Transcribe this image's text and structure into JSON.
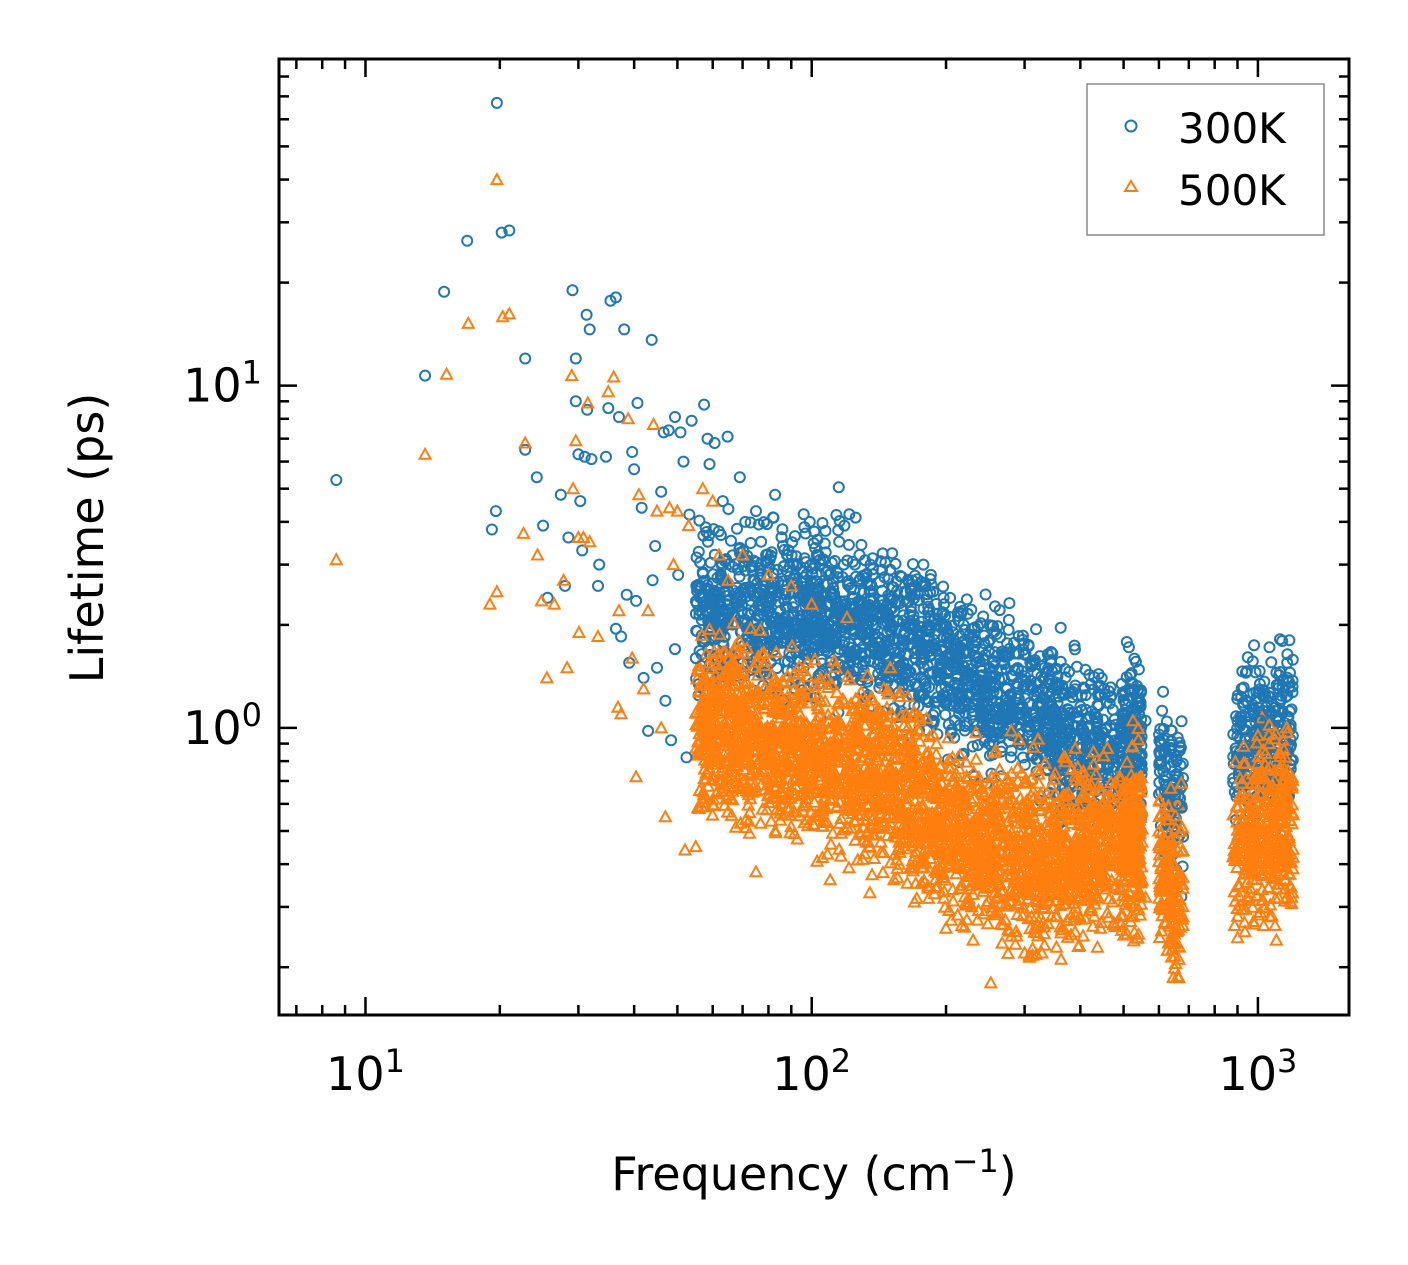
{
  "chart_data": {
    "type": "scatter",
    "title": "",
    "xlabel_main": "Frequency (cm",
    "xlabel_sup": "−1",
    "xlabel_end": ")",
    "ylabel": "Lifetime (ps)",
    "x_scale": "log",
    "y_scale": "log",
    "xlim": [
      6.4,
      1600
    ],
    "ylim": [
      0.145,
      90
    ],
    "x_ticks": [
      {
        "base": "10",
        "exp": "1",
        "value": 10
      },
      {
        "base": "10",
        "exp": "2",
        "value": 100
      },
      {
        "base": "10",
        "exp": "3",
        "value": 1000
      }
    ],
    "y_ticks": [
      {
        "base": "10",
        "exp": "0",
        "value": 1
      },
      {
        "base": "10",
        "exp": "1",
        "value": 10
      }
    ],
    "legend_position": "top-right",
    "series": [
      {
        "name": "300K",
        "marker": "circle",
        "color": "#1f77b4",
        "points": [
          [
            8.6,
            5.3
          ],
          [
            13.6,
            10.7
          ],
          [
            15.0,
            18.8
          ],
          [
            16.9,
            26.5
          ],
          [
            19.2,
            3.8
          ],
          [
            19.6,
            4.3
          ],
          [
            19.7,
            67.0
          ],
          [
            20.2,
            28.0
          ],
          [
            21.0,
            28.4
          ],
          [
            22.8,
            12.0
          ],
          [
            22.8,
            6.5
          ],
          [
            24.2,
            5.4
          ],
          [
            25.0,
            3.9
          ],
          [
            25.6,
            2.4
          ],
          [
            27.4,
            4.8
          ],
          [
            28.0,
            2.6
          ],
          [
            28.5,
            3.6
          ],
          [
            29.1,
            19.0
          ],
          [
            29.6,
            12.0
          ],
          [
            29.6,
            9.0
          ],
          [
            30.0,
            6.3
          ],
          [
            30.3,
            4.6
          ],
          [
            30.6,
            3.3
          ],
          [
            31.0,
            6.2
          ],
          [
            31.3,
            16.1
          ],
          [
            31.8,
            14.6
          ],
          [
            31.4,
            8.5
          ],
          [
            32.1,
            6.1
          ],
          [
            33.2,
            2.6
          ],
          [
            33.4,
            3.0
          ],
          [
            34.6,
            6.2
          ],
          [
            35.0,
            8.6
          ],
          [
            35.4,
            17.7
          ],
          [
            36.4,
            18.1
          ],
          [
            36.4,
            1.95
          ],
          [
            37.4,
            1.85
          ],
          [
            37.0,
            8.1
          ],
          [
            38.0,
            14.6
          ],
          [
            38.5,
            2.45
          ],
          [
            39.0,
            1.55
          ],
          [
            39.6,
            6.4
          ],
          [
            40.0,
            5.7
          ],
          [
            40.4,
            2.35
          ],
          [
            40.7,
            8.9
          ],
          [
            41.6,
            4.4
          ],
          [
            42.0,
            1.4
          ],
          [
            43.0,
            0.98
          ],
          [
            43.8,
            13.6
          ],
          [
            44.0,
            2.7
          ],
          [
            44.6,
            3.4
          ],
          [
            45.0,
            1.5
          ],
          [
            46.0,
            4.9
          ],
          [
            46.6,
            7.3
          ],
          [
            47.0,
            1.2
          ],
          [
            47.8,
            7.4
          ],
          [
            48.4,
            0.92
          ],
          [
            49.4,
            8.1
          ],
          [
            49.4,
            1.7
          ],
          [
            50.2,
            2.8
          ],
          [
            50.8,
            7.3
          ],
          [
            51.6,
            6.0
          ],
          [
            52.4,
            0.82
          ],
          [
            53.2,
            4.2
          ],
          [
            53.8,
            7.9
          ],
          [
            55.0,
            1.6
          ],
          [
            57.4,
            8.8
          ],
          [
            58.4,
            7.0
          ],
          [
            59.0,
            5.9
          ],
          [
            60.6,
            6.8
          ],
          [
            63.2,
            4.6
          ],
          [
            64.8,
            7.1
          ],
          [
            69.0,
            5.4
          ],
          [
            71.0,
            4.0
          ],
          [
            75.0,
            4.3
          ],
          [
            77.0,
            3.5
          ],
          [
            82.8,
            4.8
          ],
          [
            88.0,
            3.2
          ],
          [
            99.0,
            4.0
          ],
          [
            104.4,
            3.1
          ],
          [
            115.0,
            5.05
          ],
          [
            118.4,
            3.9
          ],
          [
            125.0,
            3.0
          ],
          [
            132.0,
            2.8
          ],
          [
            150.0,
            2.9
          ],
          [
            170.0,
            2.6
          ],
          [
            178.0,
            3.0
          ],
          [
            185.0,
            2.8
          ],
          [
            202.0,
            1.9
          ],
          [
            220.0,
            1.8
          ],
          [
            253.0,
            1.45
          ],
          [
            289.0,
            1.35
          ],
          [
            325.0,
            1.15
          ],
          [
            356.0,
            1.0
          ],
          [
            395.0,
            1.08
          ],
          [
            420.0,
            0.95
          ],
          [
            514.0,
            1.72
          ],
          [
            524.0,
            1.35
          ],
          [
            560.0,
            1.05
          ],
          [
            620.0,
            0.72
          ],
          [
            660.0,
            0.6
          ],
          [
            900.0,
            1.05
          ],
          [
            940.0,
            1.2
          ],
          [
            1015.0,
            1.05
          ],
          [
            1100.0,
            1.45
          ],
          [
            1180.0,
            1.45
          ]
        ]
      },
      {
        "name": "500K",
        "marker": "triangle",
        "color": "#ff7f0e",
        "points": [
          [
            8.6,
            3.1
          ],
          [
            13.6,
            6.3
          ],
          [
            15.2,
            10.8
          ],
          [
            17.0,
            15.2
          ],
          [
            19.0,
            2.3
          ],
          [
            19.7,
            2.5
          ],
          [
            19.7,
            40.0
          ],
          [
            20.3,
            15.9
          ],
          [
            21.0,
            16.2
          ],
          [
            22.6,
            3.7
          ],
          [
            22.8,
            6.8
          ],
          [
            24.3,
            3.2
          ],
          [
            24.8,
            2.35
          ],
          [
            25.5,
            1.4
          ],
          [
            26.5,
            2.3
          ],
          [
            27.8,
            2.7
          ],
          [
            28.3,
            1.5
          ],
          [
            29.0,
            10.7
          ],
          [
            29.2,
            5.0
          ],
          [
            29.6,
            6.9
          ],
          [
            30.0,
            3.6
          ],
          [
            30.1,
            1.9
          ],
          [
            30.8,
            3.6
          ],
          [
            31.5,
            8.9
          ],
          [
            31.8,
            3.5
          ],
          [
            33.2,
            1.85
          ],
          [
            35.0,
            9.6
          ],
          [
            36.0,
            10.6
          ],
          [
            36.8,
            1.15
          ],
          [
            37.4,
            1.1
          ],
          [
            37.0,
            2.2
          ],
          [
            38.8,
            8.0
          ],
          [
            39.6,
            1.6
          ],
          [
            40.4,
            0.72
          ],
          [
            41.0,
            4.8
          ],
          [
            42.0,
            1.3
          ],
          [
            43.0,
            2.2
          ],
          [
            44.2,
            7.7
          ],
          [
            45.0,
            4.3
          ],
          [
            46.0,
            1.0
          ],
          [
            47.0,
            0.55
          ],
          [
            48.0,
            4.4
          ],
          [
            49.0,
            3.0
          ],
          [
            50.0,
            4.3
          ],
          [
            52.0,
            0.44
          ],
          [
            53.0,
            3.9
          ],
          [
            55.0,
            0.45
          ],
          [
            57.0,
            5.0
          ],
          [
            60.0,
            4.6
          ],
          [
            62.0,
            3.2
          ],
          [
            65.0,
            2.7
          ],
          [
            70.0,
            3.2
          ],
          [
            75.0,
            0.38
          ],
          [
            80.0,
            2.8
          ],
          [
            90.0,
            2.6
          ],
          [
            100.0,
            2.3
          ],
          [
            110.0,
            0.36
          ],
          [
            120.0,
            2.1
          ],
          [
            135.0,
            0.33
          ],
          [
            150.0,
            1.5
          ],
          [
            170.0,
            0.31
          ],
          [
            200.0,
            0.26
          ],
          [
            230.0,
            0.24
          ],
          [
            252.0,
            0.18
          ],
          [
            280.0,
            0.98
          ],
          [
            300.0,
            0.22
          ],
          [
            330.0,
            0.6
          ],
          [
            380.0,
            0.28
          ],
          [
            410.0,
            0.63
          ],
          [
            460.0,
            0.55
          ],
          [
            510.0,
            0.45
          ],
          [
            525.0,
            1.05
          ],
          [
            560.0,
            0.32
          ],
          [
            600.0,
            0.5
          ],
          [
            650.0,
            0.35
          ],
          [
            665.0,
            0.23
          ],
          [
            880.0,
            0.42
          ],
          [
            940.0,
            0.62
          ],
          [
            1000.0,
            0.95
          ],
          [
            1060.0,
            0.9
          ],
          [
            1100.0,
            0.24
          ],
          [
            1160.0,
            1.0
          ],
          [
            1190.0,
            0.32
          ]
        ]
      }
    ]
  }
}
